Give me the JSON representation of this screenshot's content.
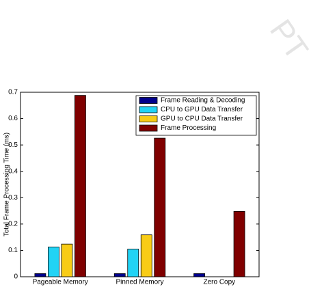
{
  "chart_data": {
    "type": "bar",
    "ylabel": "Total Frame Processing Time (ms)",
    "categories": [
      "Pageable Memory",
      "Pinned Memory",
      "Zero Copy"
    ],
    "series": [
      {
        "name": "Frame Reading & Decoding",
        "color": "#00008b",
        "values": [
          0.012,
          0.012,
          0.012
        ]
      },
      {
        "name": "CPU to GPU Data Transfer",
        "color": "#22d3f5",
        "values": [
          0.113,
          0.105,
          0
        ]
      },
      {
        "name": "GPU to CPU Data Transfer",
        "color": "#f8cc16",
        "values": [
          0.124,
          0.159,
          0
        ]
      },
      {
        "name": "Frame Processing",
        "color": "#800000",
        "values": [
          0.688,
          0.526,
          0.248
        ]
      }
    ],
    "ylim": [
      0,
      0.7
    ],
    "yticks": [
      0,
      0.1,
      0.2,
      0.3,
      0.4,
      0.5,
      0.6,
      0.7
    ],
    "legend": "upper-right",
    "grid": false
  },
  "watermark": "PT"
}
